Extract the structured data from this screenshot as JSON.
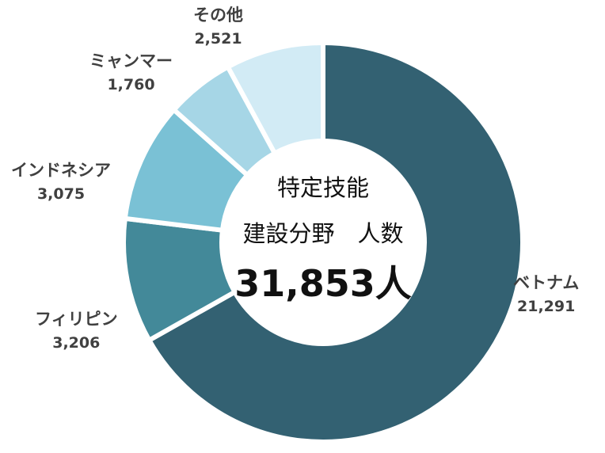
{
  "chart_data": {
    "type": "pie",
    "donut": true,
    "center": {
      "line1": "特定技能",
      "line2": "建設分野　人数",
      "total": "31,853人"
    },
    "slices": [
      {
        "name": "ベトナム",
        "value": 21291,
        "label": "21,291",
        "color": "#336172"
      },
      {
        "name": "フィリピン",
        "value": 3206,
        "label": "3,206",
        "color": "#438999"
      },
      {
        "name": "インドネシア",
        "value": 3075,
        "label": "3,075",
        "color": "#7ac1d5"
      },
      {
        "name": "ミャンマー",
        "value": 1760,
        "label": "1,760",
        "color": "#a6d6e6"
      },
      {
        "name": "その他",
        "value": 2521,
        "label": "2,521",
        "color": "#d2ebf5"
      }
    ]
  }
}
